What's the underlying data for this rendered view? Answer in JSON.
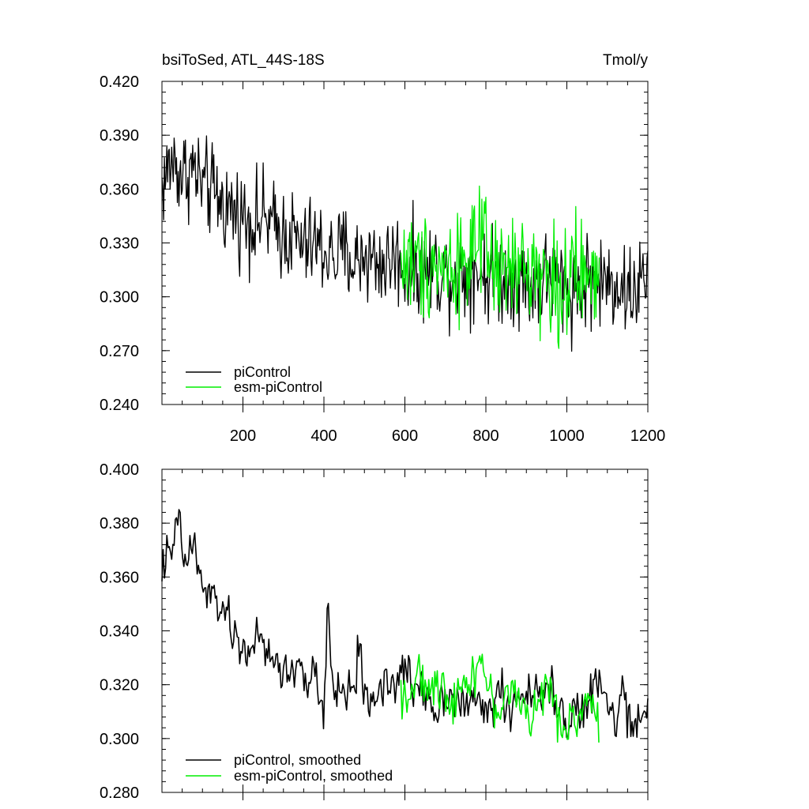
{
  "chart_data": [
    {
      "type": "line",
      "title": "bsiToSed, ATL_44S-18S",
      "units": "Tmol/y",
      "xlim": [
        0,
        1200
      ],
      "ylim": [
        0.24,
        0.42
      ],
      "x_ticks": [
        200,
        400,
        600,
        800,
        1000,
        1200
      ],
      "x_tick_labels": [
        "200",
        "400",
        "600",
        "800",
        "1000",
        "1200"
      ],
      "y_ticks": [
        0.24,
        0.27,
        0.3,
        0.33,
        0.36,
        0.39,
        0.42
      ],
      "y_tick_labels": [
        "0.240",
        "0.270",
        "0.300",
        "0.330",
        "0.360",
        "0.390",
        "0.420"
      ],
      "legend_position": "bottom-left",
      "grid": false,
      "series": [
        {
          "name": "piControl",
          "color": "#000000",
          "x": [
            0,
            25,
            50,
            75,
            100,
            125,
            150,
            175,
            200,
            225,
            250,
            275,
            300,
            325,
            350,
            375,
            400,
            425,
            450,
            475,
            500,
            525,
            550,
            575,
            600,
            625,
            650,
            675,
            700,
            725,
            750,
            775,
            800,
            825,
            850,
            875,
            900,
            925,
            950,
            975,
            1000,
            1025,
            1050,
            1075,
            1100,
            1125,
            1150,
            1175,
            1200
          ],
          "values": [
            0.362,
            0.376,
            0.368,
            0.372,
            0.362,
            0.358,
            0.352,
            0.348,
            0.345,
            0.342,
            0.344,
            0.338,
            0.336,
            0.333,
            0.327,
            0.33,
            0.326,
            0.322,
            0.325,
            0.319,
            0.324,
            0.32,
            0.318,
            0.323,
            0.315,
            0.316,
            0.314,
            0.316,
            0.312,
            0.314,
            0.312,
            0.317,
            0.311,
            0.313,
            0.31,
            0.312,
            0.306,
            0.307,
            0.311,
            0.312,
            0.303,
            0.305,
            0.31,
            0.309,
            0.308,
            0.309,
            0.301,
            0.306,
            0.31
          ],
          "noise": 0.013
        },
        {
          "name": "esm-piControl",
          "color": "#00ee00",
          "x": [
            590,
            615,
            640,
            665,
            690,
            715,
            740,
            765,
            790,
            815,
            840,
            865,
            890,
            915,
            940,
            965,
            990,
            1015,
            1040,
            1065,
            1080
          ],
          "values": [
            0.318,
            0.32,
            0.316,
            0.322,
            0.317,
            0.318,
            0.321,
            0.323,
            0.328,
            0.318,
            0.312,
            0.315,
            0.314,
            0.318,
            0.313,
            0.307,
            0.305,
            0.31,
            0.312,
            0.308,
            0.305
          ],
          "noise": 0.015
        }
      ]
    },
    {
      "type": "line",
      "xlim": [
        0,
        1200
      ],
      "ylim": [
        0.28,
        0.4
      ],
      "y_ticks": [
        0.28,
        0.3,
        0.32,
        0.34,
        0.36,
        0.38,
        0.4
      ],
      "y_tick_labels": [
        "0.280",
        "0.300",
        "0.320",
        "0.340",
        "0.360",
        "0.380",
        "0.400"
      ],
      "legend_position": "bottom-left",
      "grid": false,
      "series": [
        {
          "name": "piControl, smoothed",
          "color": "#000000",
          "x": [
            0,
            10,
            20,
            30,
            40,
            50,
            60,
            70,
            80,
            90,
            100,
            120,
            140,
            150,
            160,
            180,
            200,
            220,
            240,
            260,
            280,
            300,
            320,
            340,
            360,
            380,
            390,
            400,
            410,
            420,
            440,
            460,
            480,
            490,
            500,
            520,
            540,
            560,
            580,
            600,
            620,
            640,
            660,
            680,
            700,
            720,
            740,
            760,
            780,
            800,
            820,
            840,
            860,
            880,
            900,
            920,
            940,
            960,
            980,
            1000,
            1020,
            1040,
            1060,
            1080,
            1100,
            1120,
            1140,
            1160,
            1180,
            1200
          ],
          "values": [
            0.363,
            0.368,
            0.366,
            0.372,
            0.385,
            0.368,
            0.366,
            0.37,
            0.373,
            0.361,
            0.357,
            0.352,
            0.35,
            0.349,
            0.345,
            0.337,
            0.332,
            0.335,
            0.337,
            0.33,
            0.329,
            0.325,
            0.323,
            0.33,
            0.318,
            0.326,
            0.312,
            0.304,
            0.352,
            0.32,
            0.317,
            0.318,
            0.322,
            0.34,
            0.312,
            0.315,
            0.319,
            0.322,
            0.318,
            0.328,
            0.317,
            0.322,
            0.315,
            0.31,
            0.318,
            0.316,
            0.313,
            0.311,
            0.316,
            0.309,
            0.313,
            0.32,
            0.304,
            0.322,
            0.313,
            0.318,
            0.313,
            0.32,
            0.312,
            0.306,
            0.312,
            0.308,
            0.317,
            0.321,
            0.312,
            0.306,
            0.318,
            0.302,
            0.303,
            0.318
          ],
          "noise": 0.004
        },
        {
          "name": "esm-piControl, smoothed",
          "color": "#00ee00",
          "x": [
            590,
            610,
            630,
            650,
            670,
            690,
            710,
            730,
            750,
            770,
            790,
            810,
            830,
            850,
            870,
            890,
            910,
            930,
            950,
            970,
            990,
            1010,
            1030,
            1050,
            1070,
            1080
          ],
          "values": [
            0.318,
            0.316,
            0.322,
            0.32,
            0.317,
            0.32,
            0.315,
            0.318,
            0.321,
            0.325,
            0.33,
            0.315,
            0.31,
            0.316,
            0.318,
            0.312,
            0.308,
            0.312,
            0.321,
            0.31,
            0.303,
            0.311,
            0.306,
            0.314,
            0.311,
            0.305
          ],
          "noise": 0.004
        }
      ]
    }
  ]
}
